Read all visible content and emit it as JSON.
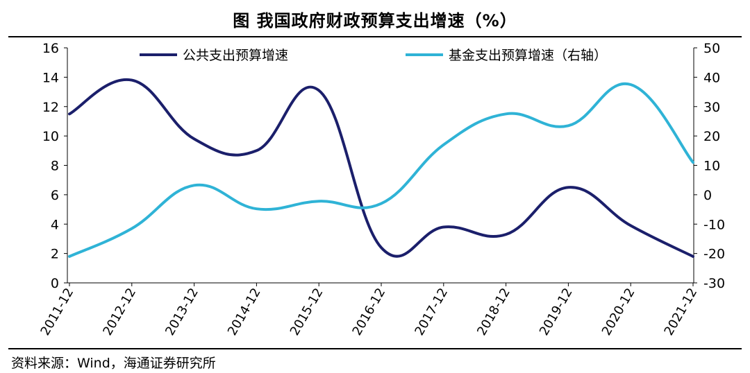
{
  "title": "图  我国政府财政预算支出增速（%）",
  "source": "资料来源：Wind，海通证券研究所",
  "chart_data": {
    "type": "line",
    "title": "图  我国政府财政预算支出增速（%）",
    "categories": [
      "2011-12",
      "2012-12",
      "2013-12",
      "2014-12",
      "2015-12",
      "2016-12",
      "2017-12",
      "2018-12",
      "2019-12",
      "2020-12",
      "2021-12"
    ],
    "series": [
      {
        "name": "公共支出预算增速",
        "axis": "left",
        "color": "#1b1f6b",
        "values": [
          11.5,
          13.8,
          9.8,
          9.0,
          13.1,
          2.4,
          3.8,
          3.3,
          6.5,
          3.9,
          1.8
        ]
      },
      {
        "name": "基金支出预算增速（右轴）",
        "axis": "right",
        "color": "#2fb3d6",
        "values": [
          -21.0,
          -11.5,
          3.2,
          -4.8,
          -2.2,
          -3.0,
          17.0,
          27.5,
          23.5,
          37.5,
          11.0
        ]
      }
    ],
    "y_left": {
      "min": 0,
      "max": 16,
      "ticks": [
        0,
        2,
        4,
        6,
        8,
        10,
        12,
        14,
        16
      ]
    },
    "y_right": {
      "min": -30,
      "max": 50,
      "ticks": [
        -30,
        -20,
        -10,
        0,
        10,
        20,
        30,
        40,
        50
      ]
    },
    "grid": false,
    "legend_position": "top"
  }
}
